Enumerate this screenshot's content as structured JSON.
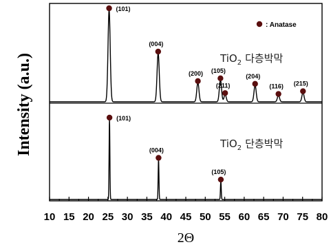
{
  "chart_data": {
    "type": "line",
    "ylabel": "Intensity (a.u.)",
    "xlabel": "2Θ",
    "xlim": [
      10,
      80
    ],
    "x_ticks": [
      "10",
      "15",
      "20",
      "25",
      "30",
      "35",
      "40",
      "45",
      "50",
      "55",
      "60",
      "65",
      "70",
      "75",
      "80"
    ],
    "legend": {
      "label": ": Anatase",
      "marker_color": "#5a0f0f",
      "placement": "top-right"
    },
    "line_color": "#000000",
    "panels": [
      {
        "annotation_main": "TiO",
        "annotation_sub": "2",
        "annotation_suffix": "다층박막",
        "peaks": [
          {
            "x": 25.3,
            "height": 1.0,
            "label": "(101)"
          },
          {
            "x": 37.9,
            "height": 0.53,
            "label": "(004)"
          },
          {
            "x": 48.1,
            "height": 0.21,
            "label": "(200)"
          },
          {
            "x": 53.9,
            "height": 0.24,
            "label": "(105)"
          },
          {
            "x": 55.1,
            "height": 0.08,
            "label": "(211)"
          },
          {
            "x": 62.8,
            "height": 0.18,
            "label": "(204)"
          },
          {
            "x": 68.8,
            "height": 0.07,
            "label": "(116)"
          },
          {
            "x": 75.1,
            "height": 0.1,
            "label": "(215)"
          }
        ]
      },
      {
        "annotation_main": "TiO",
        "annotation_sub": "2",
        "annotation_suffix": "단층박막",
        "peaks": [
          {
            "x": 25.4,
            "height": 1.0,
            "label": "(101)"
          },
          {
            "x": 38.0,
            "height": 0.5,
            "label": "(004)"
          },
          {
            "x": 54.0,
            "height": 0.23,
            "label": "(105)"
          }
        ]
      }
    ]
  }
}
